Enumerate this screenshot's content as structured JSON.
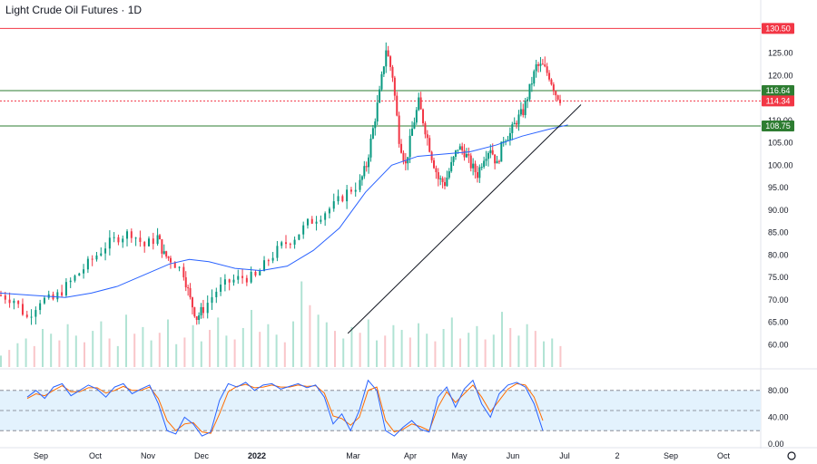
{
  "header": {
    "title": "Light Crude Oil Futures · 1D"
  },
  "chart_data": [
    {
      "type": "candlestick",
      "title": "Light Crude Oil Futures · 1D",
      "ylim": [
        55,
        132
      ],
      "y_ticks": [
        "60.00",
        "65.00",
        "70.00",
        "75.00",
        "80.00",
        "85.00",
        "90.00",
        "95.00",
        "100.00",
        "105.00",
        "110.00",
        "115.00",
        "120.00",
        "125.00",
        "130.00"
      ],
      "x_ticks": [
        "Sep",
        "Oct",
        "Nov",
        "Dec",
        "2022",
        "Mar",
        "Apr",
        "May",
        "Jun",
        "Jul",
        "2",
        "Sep",
        "Oct"
      ],
      "price_levels": [
        {
          "label": "130.50",
          "value": 130.5,
          "color": "#f23645",
          "style": "solid"
        },
        {
          "label": "116.64",
          "value": 116.64,
          "color": "#2e7d32",
          "style": "solid"
        },
        {
          "label": "114.34",
          "value": 114.34,
          "color": "#f23645",
          "style": "dotted"
        },
        {
          "label": "108.75",
          "value": 108.75,
          "color": "#2e7d32",
          "style": "solid"
        }
      ],
      "trendline": {
        "from": [
          22,
          62.5
        ],
        "to": [
          89,
          113.5
        ]
      },
      "moving_average": [
        [
          0,
          71.5
        ],
        [
          5,
          71
        ],
        [
          10,
          70.5
        ],
        [
          14,
          71.5
        ],
        [
          18,
          73
        ],
        [
          22,
          75.5
        ],
        [
          26,
          78
        ],
        [
          29,
          79
        ],
        [
          32,
          78.5
        ],
        [
          36,
          77
        ],
        [
          40,
          76.5
        ],
        [
          44,
          77.5
        ],
        [
          48,
          81
        ],
        [
          52,
          86
        ],
        [
          56,
          94
        ],
        [
          60,
          100
        ],
        [
          64,
          102
        ],
        [
          68,
          102.5
        ],
        [
          72,
          103
        ],
        [
          76,
          104.5
        ],
        [
          80,
          106.5
        ],
        [
          84,
          108
        ],
        [
          87,
          109
        ]
      ],
      "candles_anchor": [
        [
          0,
          71
        ],
        [
          2,
          70
        ],
        [
          4,
          66
        ],
        [
          6,
          70
        ],
        [
          8,
          70
        ],
        [
          10,
          73
        ],
        [
          12,
          76
        ],
        [
          14,
          79
        ],
        [
          16,
          82
        ],
        [
          18,
          84
        ],
        [
          20,
          85
        ],
        [
          22,
          82
        ],
        [
          24,
          84
        ],
        [
          25,
          80
        ],
        [
          26,
          79
        ],
        [
          28,
          76
        ],
        [
          29,
          70
        ],
        [
          30,
          66
        ],
        [
          31,
          68
        ],
        [
          33,
          72
        ],
        [
          35,
          74
        ],
        [
          37,
          75
        ],
        [
          39,
          75
        ],
        [
          41,
          79
        ],
        [
          43,
          82
        ],
        [
          45,
          84
        ],
        [
          47,
          87
        ],
        [
          49,
          89
        ],
        [
          51,
          91
        ],
        [
          53,
          94
        ],
        [
          55,
          96
        ],
        [
          56,
          100
        ],
        [
          57,
          108
        ],
        [
          58,
          116
        ],
        [
          59,
          126
        ],
        [
          60,
          120
        ],
        [
          61,
          106
        ],
        [
          62,
          100
        ],
        [
          63,
          108
        ],
        [
          64,
          114
        ],
        [
          65,
          108
        ],
        [
          66,
          102
        ],
        [
          67,
          97
        ],
        [
          68,
          96
        ],
        [
          69,
          100
        ],
        [
          70,
          104
        ],
        [
          71,
          103
        ],
        [
          72,
          100
        ],
        [
          73,
          98
        ],
        [
          74,
          102
        ],
        [
          75,
          104
        ],
        [
          76,
          100
        ],
        [
          77,
          106
        ],
        [
          78,
          107
        ],
        [
          79,
          110
        ],
        [
          80,
          112
        ],
        [
          81,
          117
        ],
        [
          82,
          122
        ],
        [
          83,
          122
        ],
        [
          84,
          120
        ],
        [
          85,
          116
        ],
        [
          86,
          114.34
        ]
      ],
      "volume_ylim": [
        0,
        100
      ],
      "volume_pattern": [
        12,
        18,
        25,
        30,
        22,
        40,
        35,
        28,
        45,
        33,
        26,
        38,
        48,
        30,
        22,
        55,
        35,
        42,
        28,
        36,
        50,
        24,
        31,
        44,
        27,
        39,
        52,
        33,
        29,
        41,
        60,
        37,
        45,
        34,
        26,
        48,
        90,
        65,
        55,
        47,
        38,
        30,
        42,
        36,
        50,
        28,
        33,
        44,
        39,
        31,
        46,
        35,
        27,
        40,
        52,
        30,
        36,
        43,
        29,
        34,
        58,
        41,
        33,
        45,
        38,
        27,
        30,
        22
      ],
      "stochastic": {
        "ylim": [
          0,
          100
        ],
        "y_ticks": [
          "0.00",
          "40.00",
          "80.00"
        ],
        "band": [
          20,
          80
        ],
        "k": [
          [
            0,
            70
          ],
          [
            1,
            80
          ],
          [
            2,
            68
          ],
          [
            3,
            85
          ],
          [
            4,
            90
          ],
          [
            5,
            72
          ],
          [
            6,
            80
          ],
          [
            7,
            88
          ],
          [
            8,
            82
          ],
          [
            9,
            70
          ],
          [
            10,
            85
          ],
          [
            11,
            90
          ],
          [
            12,
            75
          ],
          [
            13,
            82
          ],
          [
            14,
            88
          ],
          [
            15,
            60
          ],
          [
            16,
            20
          ],
          [
            17,
            15
          ],
          [
            18,
            40
          ],
          [
            19,
            30
          ],
          [
            20,
            12
          ],
          [
            21,
            18
          ],
          [
            22,
            65
          ],
          [
            23,
            90
          ],
          [
            24,
            85
          ],
          [
            25,
            92
          ],
          [
            26,
            80
          ],
          [
            27,
            88
          ],
          [
            28,
            90
          ],
          [
            29,
            82
          ],
          [
            30,
            86
          ],
          [
            31,
            90
          ],
          [
            32,
            84
          ],
          [
            33,
            88
          ],
          [
            34,
            70
          ],
          [
            35,
            30
          ],
          [
            36,
            45
          ],
          [
            37,
            20
          ],
          [
            38,
            50
          ],
          [
            39,
            95
          ],
          [
            40,
            80
          ],
          [
            41,
            20
          ],
          [
            42,
            12
          ],
          [
            43,
            25
          ],
          [
            44,
            35
          ],
          [
            45,
            22
          ],
          [
            46,
            18
          ],
          [
            47,
            70
          ],
          [
            48,
            85
          ],
          [
            49,
            55
          ],
          [
            50,
            82
          ],
          [
            51,
            95
          ],
          [
            52,
            60
          ],
          [
            53,
            40
          ],
          [
            54,
            75
          ],
          [
            55,
            88
          ],
          [
            56,
            92
          ],
          [
            57,
            85
          ],
          [
            58,
            60
          ],
          [
            59,
            20
          ]
        ],
        "d": [
          [
            0,
            68
          ],
          [
            1,
            75
          ],
          [
            2,
            72
          ],
          [
            3,
            80
          ],
          [
            4,
            87
          ],
          [
            5,
            78
          ],
          [
            6,
            78
          ],
          [
            7,
            84
          ],
          [
            8,
            84
          ],
          [
            9,
            76
          ],
          [
            10,
            80
          ],
          [
            11,
            86
          ],
          [
            12,
            80
          ],
          [
            13,
            80
          ],
          [
            14,
            85
          ],
          [
            15,
            68
          ],
          [
            16,
            35
          ],
          [
            17,
            20
          ],
          [
            18,
            30
          ],
          [
            19,
            32
          ],
          [
            20,
            18
          ],
          [
            21,
            16
          ],
          [
            22,
            45
          ],
          [
            23,
            78
          ],
          [
            24,
            86
          ],
          [
            25,
            89
          ],
          [
            26,
            84
          ],
          [
            27,
            85
          ],
          [
            28,
            88
          ],
          [
            29,
            85
          ],
          [
            30,
            85
          ],
          [
            31,
            88
          ],
          [
            32,
            86
          ],
          [
            33,
            87
          ],
          [
            34,
            76
          ],
          [
            35,
            42
          ],
          [
            36,
            38
          ],
          [
            37,
            28
          ],
          [
            38,
            40
          ],
          [
            39,
            80
          ],
          [
            40,
            85
          ],
          [
            41,
            35
          ],
          [
            42,
            18
          ],
          [
            43,
            22
          ],
          [
            44,
            30
          ],
          [
            45,
            26
          ],
          [
            46,
            20
          ],
          [
            47,
            55
          ],
          [
            48,
            78
          ],
          [
            49,
            62
          ],
          [
            50,
            75
          ],
          [
            51,
            88
          ],
          [
            52,
            70
          ],
          [
            53,
            48
          ],
          [
            54,
            65
          ],
          [
            55,
            82
          ],
          [
            56,
            90
          ],
          [
            57,
            88
          ],
          [
            58,
            70
          ],
          [
            59,
            35
          ]
        ]
      }
    }
  ],
  "colors": {
    "up": "#089981",
    "down": "#f23645",
    "ma": "#2962ff",
    "stoch_k": "#2962ff",
    "stoch_d": "#ff6d00",
    "band_fill": "#e3f2fd",
    "trend": "#131722"
  }
}
